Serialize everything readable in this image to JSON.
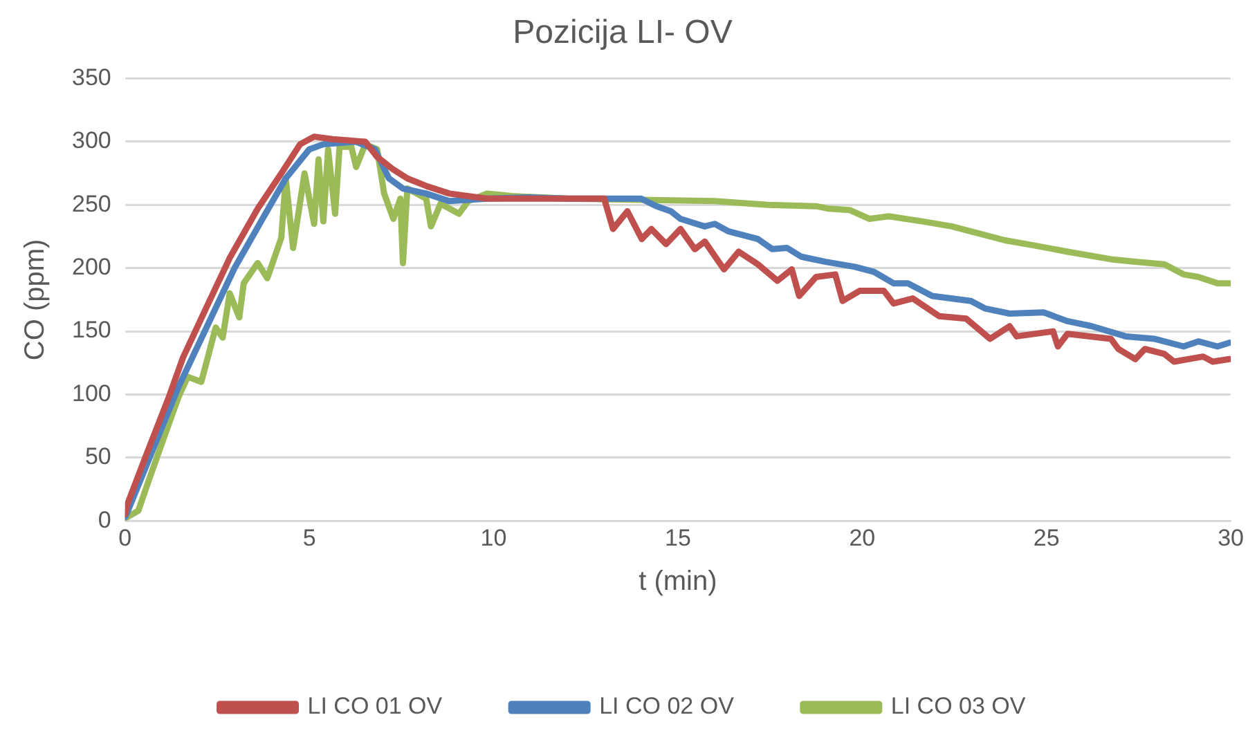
{
  "chart_data": {
    "type": "line",
    "title": "Pozicija LI- OV",
    "xlabel": "t (min)",
    "ylabel": "CO (ppm)",
    "xlim": [
      0,
      30
    ],
    "xticks": [
      0,
      5,
      10,
      15,
      20,
      25,
      30
    ],
    "ylim": [
      0,
      350
    ],
    "yticks": [
      0,
      50,
      100,
      150,
      200,
      250,
      300,
      350
    ],
    "grid": "y",
    "legend": "bottom",
    "marker": "none",
    "line_style": "solid",
    "series": [
      {
        "name": "LI CO 01 OV",
        "color": "#c0504d",
        "x": [
          0,
          0.05,
          0.56,
          1.19,
          1.57,
          2.21,
          2.84,
          3.6,
          4.24,
          4.75,
          5.13,
          5.63,
          6.52,
          6.84,
          7.28,
          7.66,
          8.17,
          8.8,
          9.82,
          11,
          12,
          13,
          13.24,
          13.63,
          14.02,
          14.28,
          14.68,
          15.07,
          15.46,
          15.73,
          16.25,
          16.65,
          17.17,
          17.7,
          18.09,
          18.29,
          18.75,
          19.27,
          19.47,
          19.93,
          20.59,
          20.85,
          21.37,
          22.09,
          22.82,
          23.47,
          24,
          24.19,
          25.18,
          25.31,
          25.57,
          26.75,
          26.95,
          27.41,
          27.67,
          28.2,
          28.46,
          29.25,
          29.51,
          29.97
        ],
        "values": [
          5,
          12,
          51,
          98,
          129,
          169,
          208,
          247,
          275,
          298,
          304,
          302,
          300,
          288,
          278,
          271,
          265,
          259,
          255,
          255,
          255,
          255,
          231,
          245,
          223,
          231,
          219,
          231,
          215,
          221,
          199,
          213,
          203,
          190,
          199,
          178,
          193,
          195,
          174,
          182,
          182,
          172,
          176,
          162,
          160,
          144,
          154,
          146,
          150,
          138,
          148,
          144,
          136,
          128,
          136,
          132,
          126,
          130,
          126,
          128
        ]
      },
      {
        "name": "LI CO 02 OV",
        "color": "#4f81bd",
        "x": [
          0,
          0.05,
          0.68,
          1.45,
          2.21,
          2.97,
          3.73,
          4.36,
          5,
          5.38,
          6.27,
          6.78,
          7.16,
          7.54,
          8.17,
          8.8,
          9.82,
          11,
          12,
          13,
          14,
          14.42,
          14.81,
          15.07,
          15.73,
          16,
          16.38,
          17.17,
          17.56,
          17.96,
          18.35,
          19.01,
          19.8,
          20.32,
          20.85,
          21.24,
          21.9,
          22.95,
          23.34,
          24,
          24.92,
          25.57,
          26.23,
          27.15,
          27.94,
          28.72,
          29.12,
          29.64,
          29.97
        ],
        "values": [
          3,
          6,
          51,
          106,
          153,
          200,
          239,
          271,
          294,
          298,
          300,
          294,
          271,
          263,
          259,
          253,
          255,
          256,
          255,
          255,
          255,
          249,
          245,
          239,
          233,
          235,
          229,
          223,
          215,
          216,
          209,
          205,
          201,
          197,
          188,
          188,
          178,
          174,
          168,
          164,
          165,
          158,
          154,
          146,
          144,
          138,
          142,
          138,
          141
        ]
      },
      {
        "name": "LI CO 03 OV",
        "color": "#9bbb59",
        "x": [
          0,
          0.36,
          0.68,
          1.07,
          1.45,
          1.7,
          2.07,
          2.46,
          2.65,
          2.84,
          3.1,
          3.22,
          3.6,
          3.86,
          4.24,
          4.36,
          4.56,
          4.87,
          5.13,
          5.25,
          5.38,
          5.51,
          5.7,
          5.82,
          6.14,
          6.27,
          6.52,
          6.84,
          7.03,
          7.28,
          7.47,
          7.54,
          7.66,
          8.17,
          8.3,
          8.56,
          9.06,
          9.31,
          9.82,
          10.5,
          12,
          14,
          16,
          17.43,
          18.75,
          19.1,
          19.66,
          20.19,
          20.72,
          21.63,
          22.43,
          22.95,
          23.87,
          24.66,
          25.57,
          26.75,
          27.41,
          28.2,
          28.72,
          29.12,
          29.64,
          29.97
        ],
        "values": [
          2,
          8,
          35,
          67,
          98,
          114,
          110,
          153,
          145,
          180,
          161,
          188,
          204,
          192,
          224,
          271,
          216,
          275,
          235,
          286,
          237,
          294,
          243,
          296,
          296,
          280,
          298,
          294,
          259,
          239,
          255,
          204,
          263,
          255,
          233,
          251,
          243,
          253,
          259,
          257,
          255,
          254,
          253,
          250,
          249,
          247,
          246,
          239,
          241,
          237,
          233,
          229,
          222,
          218,
          213,
          207,
          205,
          203,
          195,
          193,
          188,
          188
        ]
      }
    ]
  }
}
